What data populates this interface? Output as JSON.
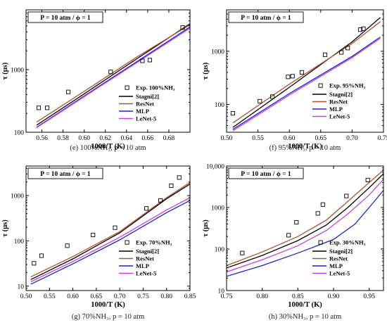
{
  "chart_data": [
    {
      "type": "line",
      "caption": "(e) 100%NH₃, p = 10 atm",
      "condition": "P = 10 atm / ϕ = 1",
      "xlabel": "1000/T (K)",
      "ylabel": "τ (μs)",
      "log_y": true,
      "xlim": [
        0.545,
        0.7
      ],
      "ylim": [
        100,
        9000
      ],
      "x_ticks": [
        0.56,
        0.58,
        0.6,
        0.62,
        0.64,
        0.66,
        0.68
      ],
      "x_tick_labels": [
        "0.56",
        "0.58",
        "0.60",
        "0.62",
        "0.64",
        "0.66",
        "0.68"
      ],
      "y_ticks": [
        100,
        1000
      ],
      "y_tick_labels": [
        "100",
        "1000"
      ],
      "legend_position": "bottom-right",
      "experimental": {
        "name": "Exp. 100%NH₃",
        "points": [
          [
            0.557,
            245
          ],
          [
            0.565,
            245
          ],
          [
            0.585,
            440
          ],
          [
            0.625,
            920
          ],
          [
            0.655,
            1380
          ],
          [
            0.662,
            1420
          ],
          [
            0.693,
            4700
          ]
        ]
      },
      "series": [
        {
          "name": "Stagni[2]",
          "color": "#000000",
          "points": [
            [
              0.555,
              130
            ],
            [
              0.6,
              410
            ],
            [
              0.65,
              1500
            ],
            [
              0.7,
              5400
            ]
          ]
        },
        {
          "name": "ResNet",
          "color": "#b5512b",
          "points": [
            [
              0.555,
              145
            ],
            [
              0.6,
              450
            ],
            [
              0.65,
              1600
            ],
            [
              0.7,
              5200
            ]
          ]
        },
        {
          "name": "MLP",
          "color": "#1e22d6",
          "points": [
            [
              0.555,
              120
            ],
            [
              0.6,
              380
            ],
            [
              0.65,
              1350
            ],
            [
              0.7,
              4800
            ]
          ]
        },
        {
          "name": "LeNet-5",
          "color": "#c63fe0",
          "points": [
            [
              0.555,
              118
            ],
            [
              0.6,
              370
            ],
            [
              0.65,
              1300
            ],
            [
              0.7,
              4600
            ]
          ]
        }
      ]
    },
    {
      "type": "line",
      "caption": "(f) 95%NH₃, p = 10 atm",
      "condition": "P = 10 atm / ϕ = 1",
      "xlabel": "1000/T (K)",
      "ylabel": "τ (μs)",
      "log_y": true,
      "xlim": [
        0.5,
        0.75
      ],
      "ylim": [
        30,
        6000
      ],
      "x_ticks": [
        0.5,
        0.55,
        0.6,
        0.65,
        0.7,
        0.75
      ],
      "x_tick_labels": [
        "0.50",
        "0.55",
        "0.60",
        "0.65",
        "0.70",
        "0.75"
      ],
      "y_ticks": [
        100,
        1000
      ],
      "y_tick_labels": [
        "100",
        "1000"
      ],
      "legend_position": "bottom-right",
      "experimental": {
        "name": "Exp. 95%NH₃",
        "points": [
          [
            0.51,
            68
          ],
          [
            0.553,
            115
          ],
          [
            0.573,
            140
          ],
          [
            0.598,
            330
          ],
          [
            0.605,
            340
          ],
          [
            0.62,
            400
          ],
          [
            0.657,
            860
          ],
          [
            0.683,
            950
          ],
          [
            0.693,
            1150
          ],
          [
            0.713,
            2550
          ],
          [
            0.718,
            2650
          ]
        ]
      },
      "series": [
        {
          "name": "Stagni[2]",
          "color": "#000000",
          "points": [
            [
              0.51,
              37
            ],
            [
              0.6,
              210
            ],
            [
              0.7,
              1500
            ],
            [
              0.745,
              4300
            ]
          ]
        },
        {
          "name": "ResNet",
          "color": "#b5512b",
          "points": [
            [
              0.51,
              45
            ],
            [
              0.6,
              240
            ],
            [
              0.7,
              1400
            ],
            [
              0.745,
              3600
            ]
          ]
        },
        {
          "name": "MLP",
          "color": "#1e22d6",
          "points": [
            [
              0.51,
              34
            ],
            [
              0.6,
              160
            ],
            [
              0.7,
              800
            ],
            [
              0.745,
              1850
            ]
          ]
        },
        {
          "name": "LeNet-5",
          "color": "#c63fe0",
          "points": [
            [
              0.51,
              32
            ],
            [
              0.6,
              150
            ],
            [
              0.7,
              760
            ],
            [
              0.745,
              1750
            ]
          ]
        }
      ]
    },
    {
      "type": "line",
      "caption": "(g) 70%NH₃, p = 10 atm",
      "condition": "P = 10 atm / ϕ = 1",
      "xlabel": "1000/T (K)",
      "ylabel": "τ (μs)",
      "log_y": true,
      "xlim": [
        0.5,
        0.85
      ],
      "ylim": [
        8,
        4500
      ],
      "x_ticks": [
        0.5,
        0.55,
        0.6,
        0.65,
        0.7,
        0.75,
        0.8,
        0.85
      ],
      "x_tick_labels": [
        "0.50",
        "0.55",
        "0.60",
        "0.65",
        "0.70",
        "0.75",
        "0.80",
        "0.85"
      ],
      "y_ticks": [
        10,
        100,
        1000
      ],
      "y_tick_labels": [
        "10",
        "100",
        "1000"
      ],
      "legend_position": "bottom-right",
      "experimental": {
        "name": "Exp. 70%NH₃",
        "points": [
          [
            0.517,
            32
          ],
          [
            0.533,
            47
          ],
          [
            0.588,
            78
          ],
          [
            0.643,
            135
          ],
          [
            0.69,
            195
          ],
          [
            0.757,
            520
          ],
          [
            0.787,
            780
          ],
          [
            0.81,
            1650
          ],
          [
            0.827,
            2500
          ]
        ]
      },
      "series": [
        {
          "name": "Stagni[2]",
          "color": "#000000",
          "points": [
            [
              0.51,
              14
            ],
            [
              0.6,
              40
            ],
            [
              0.7,
              150
            ],
            [
              0.8,
              850
            ],
            [
              0.85,
              1800
            ]
          ]
        },
        {
          "name": "ResNet",
          "color": "#b5512b",
          "points": [
            [
              0.51,
              16
            ],
            [
              0.6,
              45
            ],
            [
              0.7,
              160
            ],
            [
              0.8,
              900
            ],
            [
              0.85,
              1950
            ]
          ]
        },
        {
          "name": "MLP",
          "color": "#1e22d6",
          "points": [
            [
              0.51,
              11
            ],
            [
              0.6,
              31
            ],
            [
              0.7,
              105
            ],
            [
              0.8,
              420
            ],
            [
              0.85,
              780
            ]
          ]
        },
        {
          "name": "LeNet-5",
          "color": "#c63fe0",
          "points": [
            [
              0.51,
              12.5
            ],
            [
              0.6,
              35
            ],
            [
              0.7,
              120
            ],
            [
              0.8,
              480
            ],
            [
              0.85,
              900
            ]
          ]
        }
      ]
    },
    {
      "type": "line",
      "caption": "(h) 30%NH₃, p = 10 atm",
      "condition": "P = 10 atm / ϕ = 1",
      "xlabel": "1000/T (K)",
      "ylabel": "τ (μs)",
      "log_y": true,
      "xlim": [
        0.75,
        0.97
      ],
      "ylim": [
        10,
        10000
      ],
      "x_ticks": [
        0.75,
        0.8,
        0.85,
        0.9,
        0.95
      ],
      "x_tick_labels": [
        "0.75",
        "0.80",
        "0.85",
        "0.90",
        "0.95"
      ],
      "y_ticks": [
        10,
        100,
        1000,
        10000
      ],
      "y_tick_labels": [
        "10",
        "100",
        "1000",
        "10,000"
      ],
      "legend_position": "bottom-right",
      "experimental": {
        "name": "Exp. 30%NH₃",
        "points": [
          [
            0.772,
            80
          ],
          [
            0.837,
            215
          ],
          [
            0.848,
            440
          ],
          [
            0.878,
            720
          ],
          [
            0.885,
            1180
          ],
          [
            0.918,
            1900
          ],
          [
            0.948,
            4600
          ]
        ]
      },
      "series": [
        {
          "name": "Stagni[2]",
          "color": "#000000",
          "points": [
            [
              0.75,
              35
            ],
            [
              0.8,
              70
            ],
            [
              0.85,
              160
            ],
            [
              0.89,
              380
            ],
            [
              0.92,
              1000
            ],
            [
              0.95,
              3000
            ],
            [
              0.97,
              6500
            ]
          ]
        },
        {
          "name": "ResNet",
          "color": "#b5512b",
          "points": [
            [
              0.75,
              40
            ],
            [
              0.8,
              85
            ],
            [
              0.85,
              200
            ],
            [
              0.89,
              500
            ],
            [
              0.92,
              1400
            ],
            [
              0.95,
              4000
            ],
            [
              0.97,
              8000
            ]
          ]
        },
        {
          "name": "MLP",
          "color": "#1e22d6",
          "points": [
            [
              0.75,
              22
            ],
            [
              0.8,
              40
            ],
            [
              0.85,
              80
            ],
            [
              0.9,
              170
            ],
            [
              0.93,
              400
            ],
            [
              0.95,
              1000
            ],
            [
              0.97,
              2600
            ]
          ]
        },
        {
          "name": "LeNet-5",
          "color": "#c63fe0",
          "points": [
            [
              0.75,
              28
            ],
            [
              0.8,
              55
            ],
            [
              0.85,
              120
            ],
            [
              0.89,
              280
            ],
            [
              0.92,
              700
            ],
            [
              0.95,
              2000
            ],
            [
              0.97,
              4800
            ]
          ]
        }
      ]
    }
  ]
}
